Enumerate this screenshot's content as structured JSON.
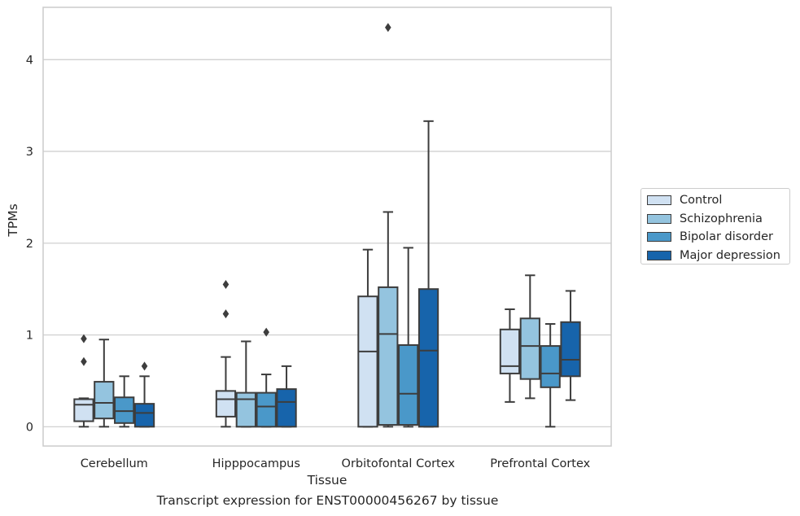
{
  "caption": "Transcript expression for ENST00000456267 by tissue",
  "chart_data": {
    "type": "box",
    "xlabel": "Tissue",
    "ylabel": "TPMs",
    "ylim": [
      -0.21,
      4.57
    ],
    "yticks": [
      0,
      1,
      2,
      3,
      4
    ],
    "grid": "horizontal",
    "legend_position": "right",
    "categories": [
      "Cerebellum",
      "Hipppocampus",
      "Orbitofontal Cortex",
      "Prefrontal Cortex"
    ],
    "series": [
      {
        "name": "Control",
        "color": "#d0e1f2",
        "boxes": [
          {
            "whisker_low": 0,
            "q1": 0.06,
            "median": 0.24,
            "q3": 0.3,
            "whisker_high": 0.31,
            "outliers": [
              0.96,
              0.71
            ]
          },
          {
            "whisker_low": 0,
            "q1": 0.11,
            "median": 0.3,
            "q3": 0.39,
            "whisker_high": 0.76,
            "outliers": [
              1.55,
              1.23
            ]
          },
          {
            "whisker_low": 0,
            "q1": 0,
            "median": 0.82,
            "q3": 1.42,
            "whisker_high": 1.93,
            "outliers": []
          },
          {
            "whisker_low": 0.27,
            "q1": 0.58,
            "median": 0.66,
            "q3": 1.06,
            "whisker_high": 1.28,
            "outliers": []
          }
        ]
      },
      {
        "name": "Schizophrenia",
        "color": "#94c4df",
        "boxes": [
          {
            "whisker_low": 0,
            "q1": 0.09,
            "median": 0.26,
            "q3": 0.49,
            "whisker_high": 0.95,
            "outliers": []
          },
          {
            "whisker_low": 0,
            "q1": 0,
            "median": 0.3,
            "q3": 0.37,
            "whisker_high": 0.93,
            "outliers": []
          },
          {
            "whisker_low": 0,
            "q1": 0.02,
            "median": 1.01,
            "q3": 1.52,
            "whisker_high": 2.34,
            "outliers": [
              4.35
            ]
          },
          {
            "whisker_low": 0.31,
            "q1": 0.52,
            "median": 0.88,
            "q3": 1.18,
            "whisker_high": 1.65,
            "outliers": []
          }
        ]
      },
      {
        "name": "Bipolar disorder",
        "color": "#4a98c9",
        "boxes": [
          {
            "whisker_low": 0,
            "q1": 0.04,
            "median": 0.17,
            "q3": 0.32,
            "whisker_high": 0.55,
            "outliers": []
          },
          {
            "whisker_low": 0,
            "q1": 0,
            "median": 0.22,
            "q3": 0.37,
            "whisker_high": 0.57,
            "outliers": [
              1.03
            ]
          },
          {
            "whisker_low": 0,
            "q1": 0.02,
            "median": 0.36,
            "q3": 0.89,
            "whisker_high": 1.95,
            "outliers": []
          },
          {
            "whisker_low": 0,
            "q1": 0.43,
            "median": 0.58,
            "q3": 0.88,
            "whisker_high": 1.12,
            "outliers": []
          }
        ]
      },
      {
        "name": "Major depression",
        "color": "#1764ab",
        "boxes": [
          {
            "whisker_low": 0,
            "q1": 0,
            "median": 0.15,
            "q3": 0.25,
            "whisker_high": 0.55,
            "outliers": [
              0.66
            ]
          },
          {
            "whisker_low": 0,
            "q1": 0,
            "median": 0.27,
            "q3": 0.41,
            "whisker_high": 0.66,
            "outliers": []
          },
          {
            "whisker_low": 0,
            "q1": 0,
            "median": 0.83,
            "q3": 1.5,
            "whisker_high": 3.33,
            "outliers": []
          },
          {
            "whisker_low": 0.29,
            "q1": 0.55,
            "median": 0.73,
            "q3": 1.14,
            "whisker_high": 1.48,
            "outliers": []
          }
        ]
      }
    ]
  }
}
